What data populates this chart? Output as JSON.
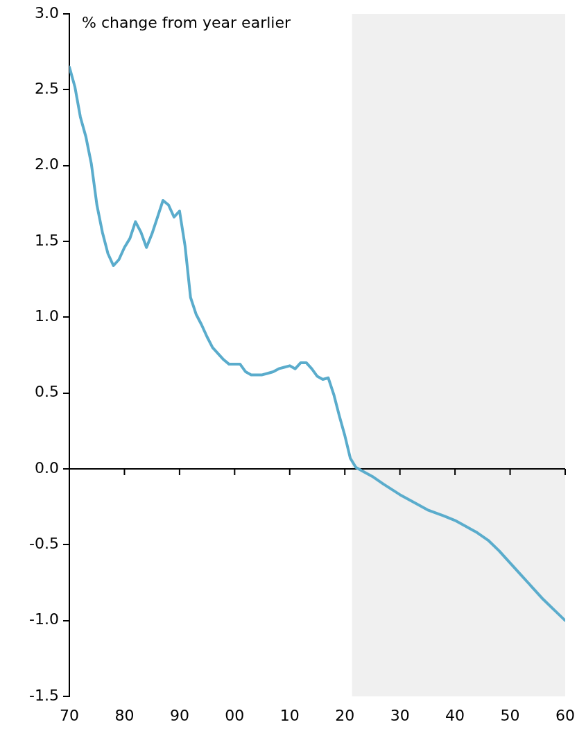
{
  "chart_data": {
    "type": "line",
    "ylabel": "% change from year earlier",
    "x": [
      1970,
      1971,
      1972,
      1973,
      1974,
      1975,
      1976,
      1977,
      1978,
      1979,
      1980,
      1981,
      1982,
      1983,
      1984,
      1985,
      1986,
      1987,
      1988,
      1989,
      1990,
      1991,
      1992,
      1993,
      1994,
      1995,
      1996,
      1997,
      1998,
      1999,
      2000,
      2001,
      2002,
      2003,
      2004,
      2005,
      2006,
      2007,
      2008,
      2009,
      2010,
      2011,
      2012,
      2013,
      2014,
      2015,
      2016,
      2017,
      2018,
      2019,
      2020,
      2021,
      2022,
      2023,
      2025,
      2027,
      2030,
      2033,
      2035,
      2038,
      2040,
      2042,
      2044,
      2046,
      2048,
      2050,
      2052,
      2054,
      2056,
      2058,
      2060
    ],
    "series": [
      {
        "color": "#5aaccc",
        "values": [
          2.65,
          2.52,
          2.32,
          2.19,
          2.01,
          1.74,
          1.56,
          1.42,
          1.34,
          1.38,
          1.46,
          1.52,
          1.63,
          1.56,
          1.46,
          1.55,
          1.66,
          1.77,
          1.74,
          1.66,
          1.7,
          1.47,
          1.13,
          1.02,
          0.95,
          0.87,
          0.8,
          0.76,
          0.72,
          0.69,
          0.69,
          0.69,
          0.64,
          0.62,
          0.62,
          0.62,
          0.63,
          0.64,
          0.66,
          0.67,
          0.68,
          0.66,
          0.7,
          0.7,
          0.66,
          0.61,
          0.59,
          0.6,
          0.49,
          0.35,
          0.22,
          0.07,
          0.01,
          -0.01,
          -0.05,
          -0.1,
          -0.17,
          -0.23,
          -0.27,
          -0.31,
          -0.34,
          -0.38,
          -0.42,
          -0.47,
          -0.54,
          -0.62,
          -0.7,
          -0.78,
          -0.86,
          -0.93,
          -1.0
        ]
      }
    ],
    "xlim": [
      1970,
      2060
    ],
    "xticks": [
      {
        "value": 1970,
        "label": "70"
      },
      {
        "value": 1980,
        "label": "80"
      },
      {
        "value": 1990,
        "label": "90"
      },
      {
        "value": 2000,
        "label": "00"
      },
      {
        "value": 2010,
        "label": "10"
      },
      {
        "value": 2020,
        "label": "20"
      },
      {
        "value": 2030,
        "label": "30"
      },
      {
        "value": 2040,
        "label": "40"
      },
      {
        "value": 2050,
        "label": "50"
      },
      {
        "value": 2060,
        "label": "60"
      }
    ],
    "ylim": [
      -1.5,
      3.0
    ],
    "yticks": [
      {
        "value": -1.5,
        "label": "-1.5"
      },
      {
        "value": -1,
        "label": "-1.0"
      },
      {
        "value": -0.5,
        "label": "-0.5"
      },
      {
        "value": 0,
        "label": "0.0"
      },
      {
        "value": 0.5,
        "label": "0.5"
      },
      {
        "value": 1,
        "label": "1.0"
      },
      {
        "value": 1.5,
        "label": "1.5"
      },
      {
        "value": 2,
        "label": "2.0"
      },
      {
        "value": 2.5,
        "label": "2.5"
      },
      {
        "value": 3,
        "label": "3.0"
      }
    ],
    "ref_lines": [
      {
        "axis": "y",
        "value": 0,
        "color": "#000000"
      }
    ],
    "bands": [
      {
        "axis": "x",
        "from": 2021.3,
        "to": 2060,
        "color": "#f0f0f0"
      }
    ],
    "grid": false,
    "legend": false,
    "marker": "none",
    "line_style": "solid"
  }
}
